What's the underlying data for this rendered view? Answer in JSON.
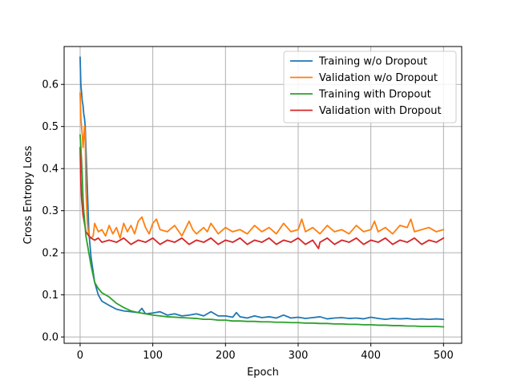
{
  "chart_data": {
    "type": "line",
    "title": "",
    "xlabel": "Epoch",
    "ylabel": "Cross Entropy Loss",
    "xlim": [
      -22,
      525
    ],
    "ylim": [
      -0.015,
      0.69
    ],
    "xticks": [
      0,
      100,
      200,
      300,
      400,
      500
    ],
    "yticks": [
      0.0,
      0.1,
      0.2,
      0.3,
      0.4,
      0.5,
      0.6
    ],
    "xtick_labels": [
      "0",
      "100",
      "200",
      "300",
      "400",
      "500"
    ],
    "ytick_labels": [
      "0.0",
      "0.1",
      "0.2",
      "0.3",
      "0.4",
      "0.5",
      "0.6"
    ],
    "grid": true,
    "legend_position": "top-right",
    "series": [
      {
        "name": "Training w/o Dropout",
        "color": "#1f77b4",
        "x": [
          0,
          1,
          2,
          3,
          4,
          5,
          6,
          7,
          8,
          10,
          12,
          15,
          20,
          25,
          30,
          40,
          50,
          60,
          70,
          80,
          85,
          90,
          100,
          110,
          120,
          130,
          140,
          150,
          160,
          170,
          180,
          190,
          200,
          210,
          215,
          220,
          230,
          240,
          250,
          260,
          270,
          280,
          290,
          300,
          310,
          320,
          330,
          340,
          350,
          360,
          370,
          380,
          390,
          400,
          410,
          420,
          430,
          440,
          450,
          460,
          470,
          480,
          490,
          500
        ],
        "values": [
          0.665,
          0.6,
          0.58,
          0.56,
          0.55,
          0.53,
          0.52,
          0.5,
          0.45,
          0.35,
          0.25,
          0.19,
          0.13,
          0.1,
          0.085,
          0.075,
          0.066,
          0.062,
          0.06,
          0.058,
          0.068,
          0.055,
          0.057,
          0.06,
          0.052,
          0.055,
          0.05,
          0.052,
          0.055,
          0.05,
          0.06,
          0.05,
          0.05,
          0.047,
          0.058,
          0.048,
          0.045,
          0.05,
          0.046,
          0.048,
          0.045,
          0.052,
          0.045,
          0.047,
          0.044,
          0.046,
          0.048,
          0.043,
          0.045,
          0.046,
          0.044,
          0.045,
          0.043,
          0.047,
          0.044,
          0.042,
          0.044,
          0.043,
          0.044,
          0.042,
          0.043,
          0.042,
          0.043,
          0.042
        ]
      },
      {
        "name": "Validation w/o Dropout",
        "color": "#ff7f0e",
        "x": [
          0,
          1,
          2,
          3,
          4,
          5,
          6,
          7,
          8,
          10,
          12,
          15,
          18,
          20,
          25,
          30,
          35,
          40,
          45,
          50,
          55,
          60,
          65,
          70,
          75,
          80,
          85,
          90,
          95,
          100,
          105,
          110,
          120,
          130,
          140,
          150,
          155,
          160,
          170,
          175,
          180,
          190,
          200,
          210,
          220,
          230,
          240,
          250,
          260,
          270,
          280,
          290,
          300,
          305,
          310,
          320,
          330,
          340,
          350,
          360,
          370,
          380,
          390,
          400,
          405,
          410,
          420,
          430,
          440,
          450,
          455,
          460,
          470,
          480,
          490,
          500
        ],
        "values": [
          0.58,
          0.52,
          0.5,
          0.48,
          0.45,
          0.47,
          0.5,
          0.48,
          0.35,
          0.27,
          0.24,
          0.235,
          0.24,
          0.27,
          0.25,
          0.255,
          0.24,
          0.265,
          0.245,
          0.26,
          0.235,
          0.27,
          0.25,
          0.265,
          0.245,
          0.275,
          0.285,
          0.26,
          0.245,
          0.27,
          0.28,
          0.255,
          0.25,
          0.265,
          0.24,
          0.275,
          0.255,
          0.245,
          0.26,
          0.25,
          0.27,
          0.245,
          0.26,
          0.25,
          0.255,
          0.245,
          0.265,
          0.25,
          0.26,
          0.245,
          0.27,
          0.25,
          0.255,
          0.28,
          0.25,
          0.26,
          0.245,
          0.265,
          0.25,
          0.255,
          0.245,
          0.265,
          0.25,
          0.255,
          0.275,
          0.25,
          0.26,
          0.245,
          0.265,
          0.26,
          0.28,
          0.25,
          0.255,
          0.26,
          0.25,
          0.255
        ]
      },
      {
        "name": "Training with Dropout",
        "color": "#2ca02c",
        "x": [
          0,
          1,
          2,
          3,
          4,
          5,
          6,
          7,
          8,
          10,
          12,
          15,
          20,
          25,
          30,
          40,
          50,
          60,
          70,
          80,
          90,
          100,
          110,
          120,
          130,
          140,
          150,
          160,
          170,
          180,
          190,
          200,
          210,
          220,
          230,
          240,
          250,
          260,
          270,
          280,
          290,
          300,
          310,
          320,
          330,
          340,
          350,
          360,
          370,
          380,
          390,
          400,
          410,
          420,
          430,
          440,
          450,
          460,
          470,
          480,
          490,
          500
        ],
        "values": [
          0.48,
          0.45,
          0.42,
          0.38,
          0.33,
          0.3,
          0.28,
          0.26,
          0.24,
          0.22,
          0.2,
          0.17,
          0.13,
          0.115,
          0.105,
          0.095,
          0.08,
          0.07,
          0.062,
          0.058,
          0.055,
          0.052,
          0.05,
          0.048,
          0.047,
          0.046,
          0.045,
          0.044,
          0.042,
          0.042,
          0.04,
          0.04,
          0.038,
          0.038,
          0.037,
          0.037,
          0.036,
          0.036,
          0.035,
          0.035,
          0.034,
          0.034,
          0.033,
          0.033,
          0.032,
          0.032,
          0.031,
          0.031,
          0.03,
          0.03,
          0.029,
          0.029,
          0.028,
          0.028,
          0.027,
          0.027,
          0.026,
          0.026,
          0.025,
          0.025,
          0.025,
          0.024
        ]
      },
      {
        "name": "Validation with Dropout",
        "color": "#d62728",
        "x": [
          0,
          1,
          2,
          3,
          4,
          5,
          6,
          7,
          8,
          10,
          12,
          15,
          20,
          25,
          30,
          40,
          50,
          60,
          70,
          80,
          90,
          100,
          110,
          120,
          130,
          140,
          150,
          160,
          170,
          180,
          190,
          200,
          210,
          220,
          230,
          240,
          250,
          260,
          270,
          280,
          290,
          300,
          310,
          320,
          328,
          330,
          340,
          350,
          360,
          370,
          380,
          390,
          400,
          410,
          420,
          430,
          440,
          450,
          460,
          470,
          480,
          490,
          500
        ],
        "values": [
          0.45,
          0.37,
          0.33,
          0.31,
          0.29,
          0.28,
          0.27,
          0.26,
          0.25,
          0.245,
          0.24,
          0.235,
          0.23,
          0.235,
          0.225,
          0.23,
          0.225,
          0.235,
          0.22,
          0.23,
          0.225,
          0.235,
          0.22,
          0.23,
          0.225,
          0.235,
          0.22,
          0.23,
          0.225,
          0.235,
          0.22,
          0.23,
          0.225,
          0.235,
          0.22,
          0.23,
          0.225,
          0.235,
          0.22,
          0.23,
          0.225,
          0.235,
          0.22,
          0.23,
          0.21,
          0.225,
          0.235,
          0.22,
          0.23,
          0.225,
          0.235,
          0.22,
          0.23,
          0.225,
          0.235,
          0.22,
          0.23,
          0.225,
          0.235,
          0.22,
          0.23,
          0.225,
          0.235
        ]
      }
    ]
  }
}
